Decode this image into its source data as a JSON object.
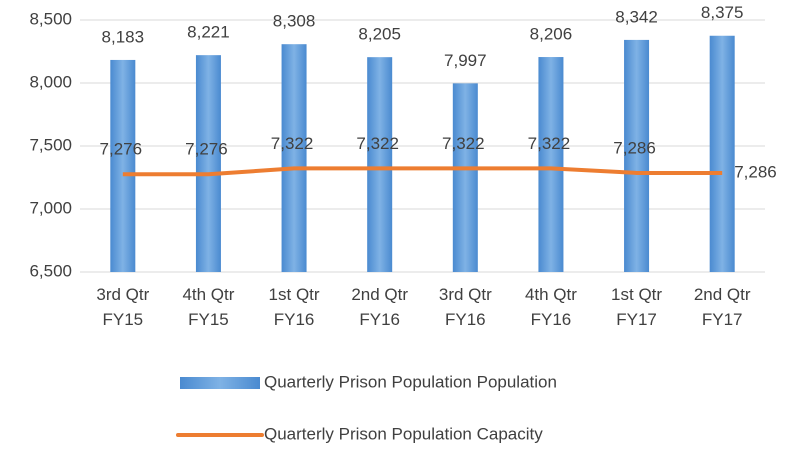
{
  "chart_data": {
    "type": "bar",
    "categories": [
      [
        "3rd Qtr",
        "FY15"
      ],
      [
        "4th Qtr",
        "FY15"
      ],
      [
        "1st Qtr",
        "FY16"
      ],
      [
        "2nd Qtr",
        "FY16"
      ],
      [
        "3rd Qtr",
        "FY16"
      ],
      [
        "4th Qtr",
        "FY16"
      ],
      [
        "1st Qtr",
        "FY17"
      ],
      [
        "2nd Qtr",
        "FY17"
      ]
    ],
    "series": [
      {
        "name": "Quarterly Prison Population Population",
        "type": "bar",
        "color": "#5b9bd5",
        "values": [
          8183,
          8221,
          8308,
          8205,
          7997,
          8206,
          8342,
          8375
        ],
        "value_labels": [
          "8,183",
          "8,221",
          "8,308",
          "8,205",
          "7,997",
          "8,206",
          "8,342",
          "8,375"
        ]
      },
      {
        "name": "Quarterly Prison Population Capacity",
        "type": "line",
        "color": "#ed7d31",
        "values": [
          7276,
          7276,
          7322,
          7322,
          7322,
          7322,
          7286,
          7286
        ],
        "value_labels": [
          "7,276",
          "7,276",
          "7,322",
          "7,322",
          "7,322",
          "7,322",
          "7,286",
          "7,286"
        ]
      }
    ],
    "ylim": [
      6500,
      8500
    ],
    "yticks": [
      {
        "value": 6500,
        "label": "6,500"
      },
      {
        "value": 7000,
        "label": "7,000"
      },
      {
        "value": 7500,
        "label": "7,500"
      },
      {
        "value": 8000,
        "label": "8,000"
      },
      {
        "value": 8500,
        "label": "8,500"
      }
    ],
    "grid": true,
    "legend": "bottom"
  }
}
